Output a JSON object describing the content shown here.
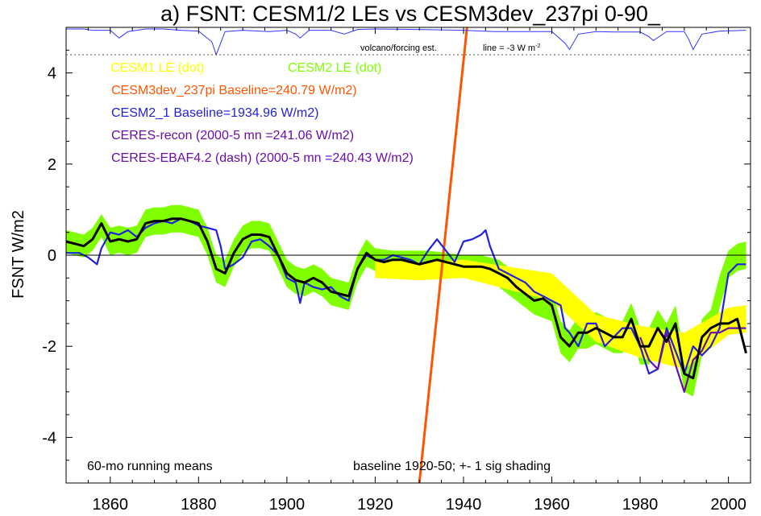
{
  "chart_data": {
    "type": "line",
    "title": "a) FSNT: CESM1/2 LEs vs CESM3dev_237pi 0-90_",
    "ylabel": "FSNT W/m2",
    "xlabel": "",
    "xlim": [
      1850,
      2005
    ],
    "ylim": [
      -5,
      5
    ],
    "x_ticks": [
      1860,
      1880,
      1900,
      1920,
      1940,
      1960,
      1980,
      2000
    ],
    "y_ticks": [
      -4,
      -2,
      0,
      2,
      4
    ],
    "grid": false,
    "zero_line": true,
    "legend_placement": "top-left",
    "legend": [
      {
        "label": "CESM1 LE (dot)",
        "color": "#ffff00"
      },
      {
        "label": "CESM2 LE (dot)",
        "color": "#7fff00"
      },
      {
        "label": "CESM3dev_237pi Baseline=240.79 W/m2)",
        "color": "#ff5500"
      },
      {
        "label": "CESM2_1 Baseline=1934.96 W/m2)",
        "color": "#2222dd"
      },
      {
        "label": "CERES-recon (2000-5 mn =241.06 W/m2)",
        "color": "#6a0dad"
      },
      {
        "label": "CERES-EBAF4.2 (dash) (2000-5 mn =240.43 W/m2)",
        "color": "#6a0dad"
      }
    ],
    "annotations": {
      "volcano": "volcano/forcing est.",
      "line_note": "line = -3 W m",
      "line_note_sup": "-2",
      "bottom_left": "60-mo running means",
      "bottom_right": "baseline 1920-50; +- 1 sig shading"
    },
    "colors": {
      "cesm1_band": "#ffff00",
      "cesm2_band": "#7fff00",
      "ensemble_mean": "#000000",
      "cesm2_1": "#2222dd",
      "ceres": "#6a0dad",
      "cesm3dev": "#ff5500",
      "volcano": "#3333ff"
    },
    "series": [
      {
        "name": "CESM3dev_237pi Baseline=240.79 W/m2)",
        "x": [
          1930,
          1940.8
        ],
        "y": [
          -5.0,
          5.0
        ]
      },
      {
        "name": "CESM2_1 Baseline=1934.96 W/m2)",
        "x": [
          1850,
          1853,
          1855,
          1857,
          1858,
          1860,
          1862,
          1864,
          1866,
          1868,
          1870,
          1872,
          1874,
          1876,
          1878,
          1880,
          1882,
          1884,
          1885,
          1886,
          1888,
          1890,
          1892,
          1894,
          1896,
          1898,
          1900,
          1902,
          1903,
          1904,
          1906,
          1908,
          1910,
          1912,
          1914,
          1916,
          1918,
          1920,
          1922,
          1924,
          1926,
          1928,
          1930,
          1932,
          1934,
          1936,
          1938,
          1940,
          1942,
          1944,
          1945,
          1946,
          1948,
          1950,
          1952,
          1954,
          1956,
          1958,
          1960,
          1962,
          1963,
          1964,
          1966,
          1968,
          1970,
          1972,
          1974,
          1976,
          1978,
          1980,
          1982,
          1984,
          1986,
          1988,
          1990,
          1992,
          1994,
          1996,
          1998,
          2000,
          2002,
          2004
        ],
        "y": [
          0.05,
          0.05,
          -0.05,
          -0.2,
          0.15,
          0.5,
          0.45,
          0.55,
          0.4,
          0.6,
          0.7,
          0.75,
          0.7,
          0.8,
          0.75,
          0.65,
          0.6,
          0.55,
          0.2,
          -0.3,
          -0.2,
          -0.05,
          0.3,
          0.35,
          0.2,
          0.0,
          -0.5,
          -0.6,
          -1.05,
          -0.6,
          -0.7,
          -0.75,
          -0.7,
          -0.9,
          -1.0,
          -0.3,
          0.0,
          -0.1,
          -0.1,
          0.0,
          -0.05,
          -0.1,
          -0.2,
          0.1,
          0.35,
          0.1,
          -0.15,
          0.3,
          0.35,
          0.45,
          0.55,
          0.2,
          -0.3,
          -0.4,
          -0.5,
          -0.6,
          -0.8,
          -0.9,
          -1.0,
          -1.1,
          -1.6,
          -1.7,
          -2.0,
          -1.5,
          -1.5,
          -2.0,
          -1.8,
          -1.6,
          -1.6,
          -2.0,
          -2.6,
          -2.5,
          -1.6,
          -2.1,
          -2.6,
          -2.0,
          -2.2,
          -2.0,
          -1.6,
          -0.4,
          -0.2,
          -0.2
        ]
      },
      {
        "name": "CERES-recon (2000-5 mn =241.06 W/m2)",
        "x": [
          1980,
          1982,
          1984,
          1986,
          1988,
          1990,
          1992,
          1994,
          1996,
          1998,
          2000,
          2002,
          2004
        ],
        "y": [
          -1.8,
          -2.3,
          -2.5,
          -1.7,
          -2.4,
          -3.0,
          -2.3,
          -2.1,
          -1.7,
          -1.7,
          -1.6,
          -1.6,
          -1.6
        ]
      },
      {
        "name": "ensemble mean",
        "x": [
          1850,
          1852,
          1854,
          1856,
          1858,
          1860,
          1862,
          1864,
          1866,
          1868,
          1870,
          1872,
          1874,
          1876,
          1878,
          1880,
          1882,
          1884,
          1886,
          1888,
          1890,
          1892,
          1894,
          1896,
          1898,
          1900,
          1902,
          1904,
          1906,
          1908,
          1910,
          1912,
          1914,
          1916,
          1918,
          1920,
          1922,
          1924,
          1926,
          1928,
          1930,
          1932,
          1934,
          1936,
          1938,
          1940,
          1942,
          1944,
          1946,
          1948,
          1950,
          1952,
          1954,
          1956,
          1958,
          1960,
          1962,
          1964,
          1966,
          1968,
          1970,
          1972,
          1974,
          1976,
          1978,
          1980,
          1982,
          1984,
          1986,
          1988,
          1990,
          1992,
          1994,
          1996,
          1998,
          2000,
          2002,
          2004
        ],
        "y": [
          0.3,
          0.25,
          0.2,
          0.35,
          0.7,
          0.3,
          0.35,
          0.3,
          0.35,
          0.7,
          0.75,
          0.75,
          0.8,
          0.8,
          0.75,
          0.7,
          0.3,
          -0.3,
          -0.4,
          0.05,
          0.35,
          0.45,
          0.45,
          0.4,
          0.0,
          -0.4,
          -0.55,
          -0.6,
          -0.5,
          -0.6,
          -0.8,
          -0.85,
          -0.9,
          -0.3,
          0.05,
          -0.1,
          -0.15,
          -0.1,
          -0.1,
          -0.15,
          -0.2,
          -0.15,
          -0.1,
          -0.15,
          -0.2,
          -0.25,
          -0.25,
          -0.25,
          -0.3,
          -0.4,
          -0.5,
          -0.7,
          -0.85,
          -1.0,
          -0.95,
          -1.1,
          -1.8,
          -2.0,
          -1.7,
          -1.7,
          -1.6,
          -1.7,
          -1.8,
          -1.8,
          -1.4,
          -2.0,
          -2.0,
          -1.6,
          -1.9,
          -1.5,
          -2.6,
          -2.7,
          -1.8,
          -1.6,
          -1.5,
          -1.5,
          -1.4,
          -2.15
        ]
      }
    ],
    "bands": [
      {
        "name": "CESM1 LE (dot)",
        "x": [
          1920,
          1930,
          1940,
          1950,
          1960,
          1970,
          1980,
          1990,
          2000,
          2004
        ],
        "y": [
          -0.3,
          -0.35,
          -0.3,
          -0.5,
          -0.7,
          -1.6,
          -1.9,
          -2.1,
          -1.45,
          -1.4
        ],
        "spread": [
          0.2,
          0.2,
          0.2,
          0.25,
          0.3,
          0.3,
          0.35,
          0.4,
          0.3,
          0.3
        ]
      },
      {
        "name": "CESM2 LE (dot)",
        "x": [
          1850,
          1852,
          1854,
          1856,
          1858,
          1860,
          1862,
          1864,
          1866,
          1868,
          1870,
          1872,
          1874,
          1876,
          1878,
          1880,
          1882,
          1884,
          1886,
          1888,
          1890,
          1892,
          1894,
          1896,
          1898,
          1900,
          1902,
          1904,
          1906,
          1908,
          1910,
          1912,
          1914,
          1916,
          1918,
          1920,
          1924,
          1928,
          1932,
          1936,
          1940,
          1944,
          1948,
          1952,
          1956,
          1960,
          1962,
          1964,
          1966,
          1968,
          1970,
          1972,
          1974,
          1976,
          1978,
          1980,
          1982,
          1984,
          1986,
          1988,
          1990,
          1992,
          1994,
          1996,
          1998,
          2000,
          2002,
          2004
        ],
        "y": [
          0.3,
          0.25,
          0.2,
          0.35,
          0.65,
          0.3,
          0.35,
          0.3,
          0.35,
          0.7,
          0.75,
          0.75,
          0.8,
          0.8,
          0.75,
          0.7,
          0.3,
          -0.3,
          -0.4,
          0.05,
          0.35,
          0.45,
          0.45,
          0.4,
          0.0,
          -0.4,
          -0.55,
          -0.6,
          -0.5,
          -0.6,
          -0.8,
          -0.85,
          -0.9,
          -0.3,
          0.05,
          -0.1,
          -0.15,
          -0.15,
          -0.15,
          -0.2,
          -0.25,
          -0.25,
          -0.4,
          -0.7,
          -1.0,
          -1.1,
          -1.8,
          -2.0,
          -1.7,
          -1.7,
          -1.6,
          -1.7,
          -1.8,
          -1.8,
          -1.4,
          -2.0,
          -2.0,
          -1.6,
          -1.9,
          -1.5,
          -2.6,
          -2.7,
          -1.8,
          -1.6,
          -0.8,
          -0.2,
          -0.05,
          0.0
        ],
        "spread": [
          0.25,
          0.25,
          0.25,
          0.25,
          0.25,
          0.3,
          0.3,
          0.3,
          0.3,
          0.3,
          0.3,
          0.3,
          0.3,
          0.3,
          0.3,
          0.3,
          0.3,
          0.3,
          0.3,
          0.3,
          0.3,
          0.3,
          0.3,
          0.3,
          0.3,
          0.3,
          0.3,
          0.3,
          0.3,
          0.3,
          0.3,
          0.3,
          0.3,
          0.3,
          0.3,
          0.25,
          0.25,
          0.25,
          0.25,
          0.25,
          0.25,
          0.25,
          0.3,
          0.3,
          0.3,
          0.35,
          0.35,
          0.35,
          0.35,
          0.35,
          0.35,
          0.35,
          0.35,
          0.35,
          0.35,
          0.4,
          0.4,
          0.4,
          0.4,
          0.4,
          0.4,
          0.4,
          0.4,
          0.4,
          0.35,
          0.3,
          0.3,
          0.3
        ]
      }
    ],
    "volcano_series": {
      "name": "volcano/forcing est.",
      "x": [
        1850,
        1854,
        1856,
        1860,
        1862,
        1864,
        1868,
        1872,
        1876,
        1880,
        1883,
        1884,
        1886,
        1890,
        1896,
        1900,
        1902,
        1903,
        1905,
        1910,
        1912,
        1913,
        1916,
        1920,
        1930,
        1940,
        1947,
        1955,
        1960,
        1963,
        1964,
        1966,
        1970,
        1975,
        1980,
        1982,
        1983,
        1986,
        1990,
        1991,
        1992,
        1994,
        1998,
        2004
      ],
      "dip": [
        0,
        0,
        -0.05,
        -0.05,
        -0.35,
        -0.1,
        0,
        0,
        -0.05,
        -0.08,
        -0.5,
        -1.0,
        -0.1,
        -0.05,
        -0.1,
        -0.05,
        -0.2,
        -0.35,
        -0.05,
        -0.05,
        -0.15,
        -0.2,
        -0.02,
        0,
        -0.02,
        -0.05,
        -0.1,
        -0.1,
        -0.1,
        -0.55,
        -0.8,
        -0.2,
        -0.1,
        -0.12,
        -0.12,
        -0.3,
        -0.45,
        -0.1,
        -0.1,
        -0.4,
        -0.8,
        -0.2,
        -0.08,
        -0.05
      ]
    }
  }
}
